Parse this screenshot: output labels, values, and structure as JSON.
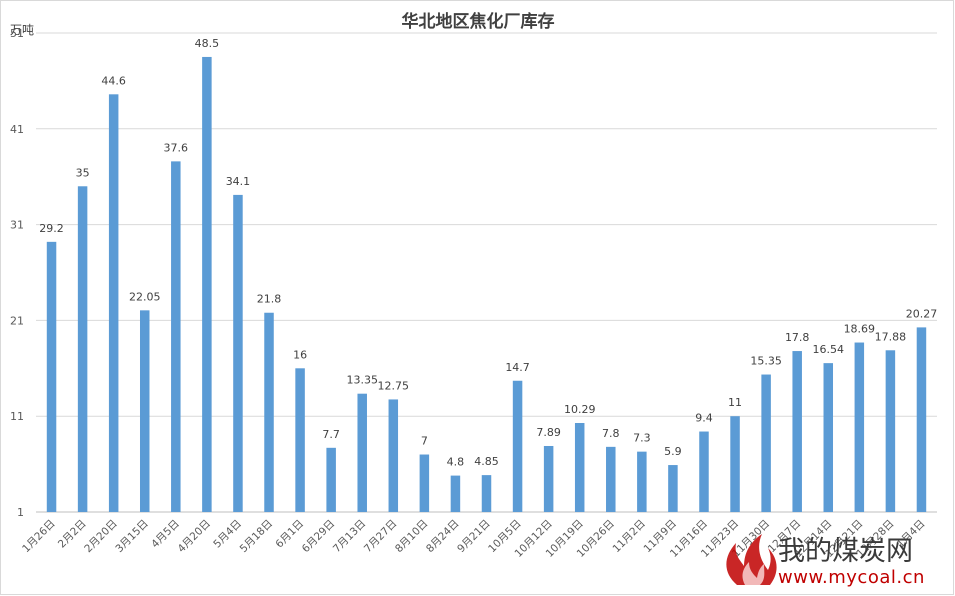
{
  "chart_data": {
    "type": "bar",
    "title": "华北地区焦化厂库存",
    "unit_label": "万吨",
    "xlabel": "",
    "ylabel": "",
    "ylim": [
      1,
      51
    ],
    "yticks": [
      1,
      11,
      21,
      31,
      41,
      51
    ],
    "grid": true,
    "legend": "none",
    "bar_color": "#5b9bd5",
    "categories": [
      "1月26日",
      "2月2日",
      "2月20日",
      "3月15日",
      "4月5日",
      "4月20日",
      "5月4日",
      "5月18日",
      "6月1日",
      "6月29日",
      "7月13日",
      "7月27日",
      "8月10日",
      "8月24日",
      "9月21日",
      "10月5日",
      "10月12日",
      "10月19日",
      "10月26日",
      "11月2日",
      "11月9日",
      "11月16日",
      "11月23日",
      "11月30日",
      "12月7日",
      "12月14日",
      "12月21日",
      "12月28日",
      "1月4日"
    ],
    "values": [
      29.2,
      35,
      44.6,
      22.05,
      37.6,
      48.5,
      34.1,
      21.8,
      16,
      7.7,
      13.35,
      12.75,
      7,
      4.8,
      4.85,
      14.7,
      7.89,
      10.29,
      7.8,
      7.3,
      5.9,
      9.4,
      11,
      15.35,
      17.8,
      16.54,
      18.69,
      17.88,
      20.27
    ],
    "value_labels": [
      "29.2",
      "35",
      "44.6",
      "22.05",
      "37.6",
      "48.5",
      "34.1",
      "21.8",
      "16",
      "7.7",
      "13.35",
      "12.75",
      "7",
      "4.8",
      "4.85",
      "14.7",
      "7.89",
      "10.29",
      "7.8",
      "7.3",
      "5.9",
      "9.4",
      "11",
      "15.35",
      "17.8",
      "16.54",
      "18.69",
      "17.88",
      "20.27"
    ]
  },
  "watermark": {
    "name": "我的煤炭网",
    "url": "www.mycoal.cn",
    "accent": "#c00000"
  }
}
